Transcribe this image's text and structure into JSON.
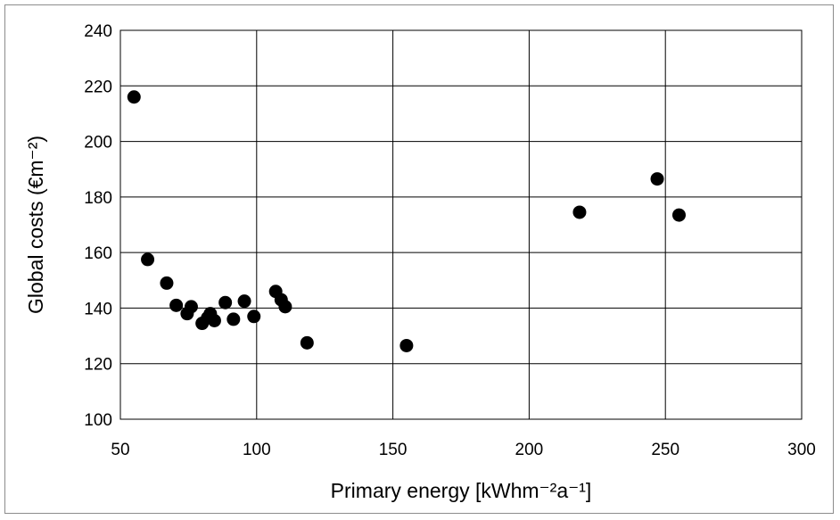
{
  "chart_data": {
    "type": "scatter",
    "xlabel": "Primary energy [kWhm⁻²a⁻¹]",
    "ylabel": "Global costs (€m⁻²)",
    "xlim": [
      50,
      300
    ],
    "ylim": [
      100,
      240
    ],
    "xticks": [
      50,
      100,
      150,
      200,
      250,
      300
    ],
    "yticks": [
      100,
      120,
      140,
      160,
      180,
      200,
      220,
      240
    ],
    "grid": true,
    "marker_color": "#000000",
    "points": [
      {
        "x": 55,
        "y": 216
      },
      {
        "x": 60,
        "y": 157.5
      },
      {
        "x": 67,
        "y": 149
      },
      {
        "x": 70.5,
        "y": 141
      },
      {
        "x": 74.5,
        "y": 138
      },
      {
        "x": 76,
        "y": 140.5
      },
      {
        "x": 80,
        "y": 134.5
      },
      {
        "x": 82,
        "y": 136.5
      },
      {
        "x": 83,
        "y": 138
      },
      {
        "x": 84.5,
        "y": 135.5
      },
      {
        "x": 88.5,
        "y": 142
      },
      {
        "x": 91.5,
        "y": 136
      },
      {
        "x": 95.5,
        "y": 142.5
      },
      {
        "x": 99,
        "y": 137
      },
      {
        "x": 107,
        "y": 146
      },
      {
        "x": 109,
        "y": 143
      },
      {
        "x": 110.5,
        "y": 140.5
      },
      {
        "x": 118.5,
        "y": 127.5
      },
      {
        "x": 155,
        "y": 126.5
      },
      {
        "x": 218.5,
        "y": 174.5
      },
      {
        "x": 247,
        "y": 186.5
      },
      {
        "x": 255,
        "y": 173.5
      }
    ]
  }
}
